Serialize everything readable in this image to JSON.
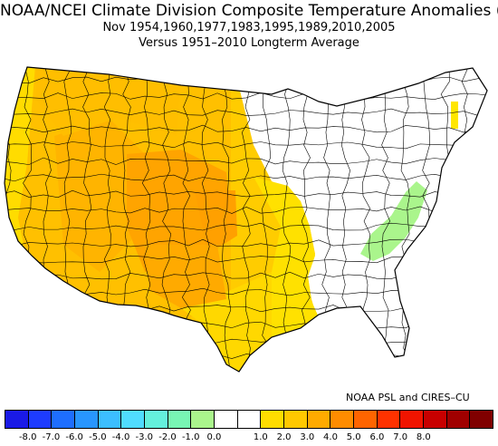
{
  "title": {
    "line1": "NOAA/NCEI Climate Division Composite Temperature Anomalies (F)",
    "line2": "Nov  1954,1960,1977,1983,1995,1989,2010,2005",
    "line3": "Versus 1951–2010 Longterm Average"
  },
  "credit": "NOAA PSL and CIRES–CU",
  "colorbar": {
    "colors": [
      "#1a1ae6",
      "#1e3cff",
      "#1e6eff",
      "#2896ff",
      "#3cbeff",
      "#50dcff",
      "#64f0dc",
      "#78f5b4",
      "#aaf58c",
      "#ffffff",
      "#ffffff",
      "#ffdc00",
      "#ffc800",
      "#ffaa00",
      "#ff8c00",
      "#ff6400",
      "#ff3200",
      "#f01400",
      "#c80000",
      "#a00000",
      "#800000"
    ],
    "ticks": [
      "-8.0",
      "-7.0",
      "-6.0",
      "-5.0",
      "-4.0",
      "-3.0",
      "-2.0",
      "-1.0",
      "0.0",
      "1.0",
      "2.0",
      "3.0",
      "4.0",
      "5.0",
      "6.0",
      "7.0",
      "8.0"
    ]
  },
  "map_regions": [
    {
      "name": "pacific-northwest",
      "anomaly": "1.0 to 2.0",
      "color": "#ffc800"
    },
    {
      "name": "california-coast",
      "anomaly": "0.5 to 1.0",
      "color": "#ffdc00"
    },
    {
      "name": "great-basin",
      "anomaly": "1.0 to 2.0",
      "color": "#ffb400"
    },
    {
      "name": "four-corners",
      "anomaly": "2.0 to 3.0",
      "color": "#ffa000"
    },
    {
      "name": "northern-rockies-plains",
      "anomaly": "1.0 to 2.0",
      "color": "#ffbe00"
    },
    {
      "name": "central-plains",
      "anomaly": "2.0 to 3.0",
      "color": "#ffaa00"
    },
    {
      "name": "texas-gulf",
      "anomaly": "0.5 to 1.0",
      "color": "#ffe100"
    },
    {
      "name": "mississippi-valley",
      "anomaly": "0.5 to 1.0",
      "color": "#ffe600"
    },
    {
      "name": "eastern-us",
      "anomaly": "-0.5 to 0.5",
      "color": "#ffffff"
    },
    {
      "name": "appalachians",
      "anomaly": "-1.0 to -0.5",
      "color": "#aaf58c"
    },
    {
      "name": "northern-new-england",
      "anomaly": "0.5 to 1.0",
      "color": "#ffe600"
    }
  ]
}
